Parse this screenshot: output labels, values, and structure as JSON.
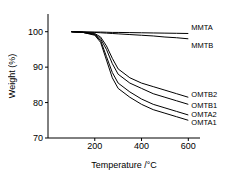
{
  "chart_data": {
    "type": "line",
    "x_label": "Temperature /°C",
    "y_label": "Weight (%)",
    "x": [
      100,
      150,
      200,
      225,
      250,
      275,
      300,
      350,
      400,
      450,
      500,
      550,
      600
    ],
    "xlim": [
      0,
      650
    ],
    "xticks": [
      200,
      400,
      600
    ],
    "ylim": [
      70,
      105
    ],
    "yticks": [
      70,
      80,
      90,
      100
    ],
    "grid": false,
    "series": [
      {
        "name": "MMTA",
        "color": "#000000",
        "values": [
          100,
          99.95,
          99.9,
          99.9,
          99.85,
          99.8,
          99.8,
          99.75,
          99.7,
          99.65,
          99.6,
          99.55,
          99.5
        ]
      },
      {
        "name": "MMTB",
        "color": "#000000",
        "values": [
          100,
          99.9,
          99.8,
          99.7,
          99.6,
          99.5,
          99.4,
          99.2,
          99,
          98.8,
          98.5,
          98.3,
          98
        ]
      },
      {
        "name": "OMTB2",
        "color": "#000000",
        "values": [
          100,
          99.9,
          99.5,
          98.5,
          96,
          92.5,
          89.5,
          87,
          85.5,
          84.5,
          83.5,
          82.5,
          81.5
        ]
      },
      {
        "name": "OMTB1",
        "color": "#000000",
        "values": [
          100,
          99.8,
          99.3,
          98,
          95,
          91,
          88,
          85.5,
          84,
          82.5,
          81.5,
          80.5,
          79.5
        ]
      },
      {
        "name": "OMTA2",
        "color": "#000000",
        "values": [
          100,
          99.8,
          99.2,
          97.5,
          93,
          88.5,
          85.5,
          83,
          81,
          79.5,
          78.5,
          77.5,
          76.5
        ]
      },
      {
        "name": "OMTA1",
        "color": "#000000",
        "values": [
          100,
          99.8,
          99,
          97,
          92,
          87,
          84,
          81.5,
          79.5,
          78,
          77,
          76,
          75
        ]
      }
    ]
  }
}
